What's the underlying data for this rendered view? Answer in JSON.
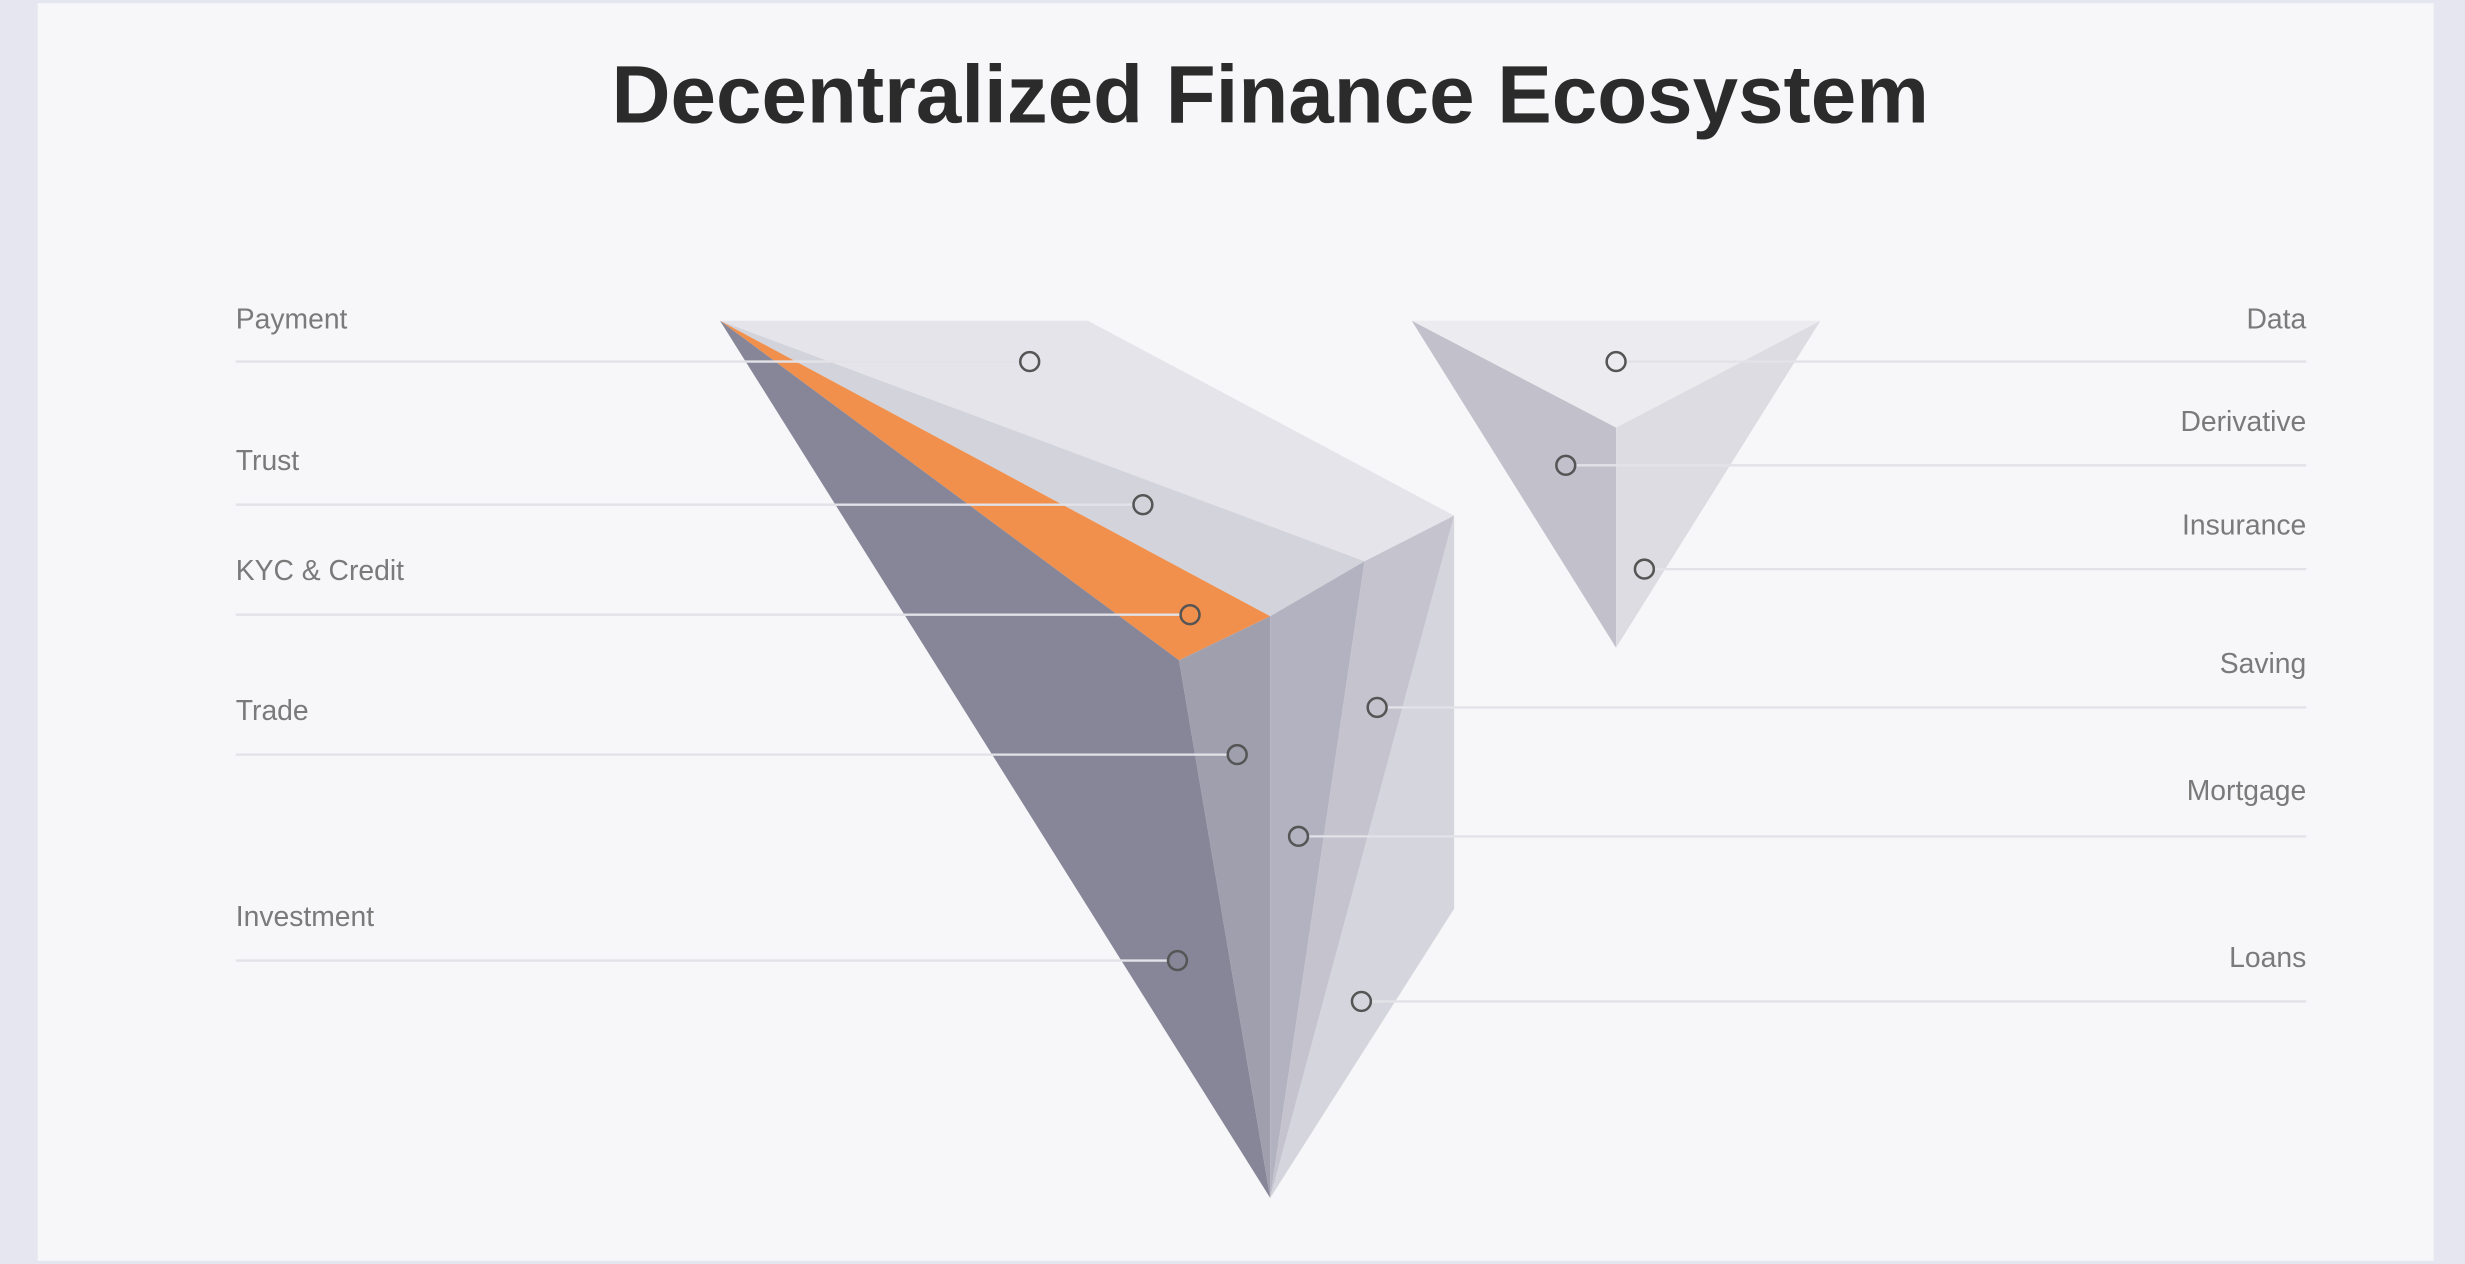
{
  "title": "Decentralized Finance Ecosystem",
  "left_labels": [
    "Payment",
    "Trust",
    "KYC & Credit",
    "Trade",
    "Investment"
  ],
  "right_labels": [
    "Data",
    "Derivative",
    "Insurance",
    "Saving",
    "Mortgage",
    "Loans"
  ]
}
